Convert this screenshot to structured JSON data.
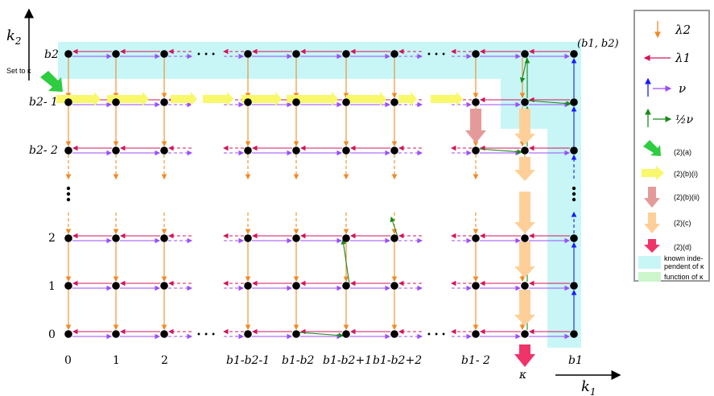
{
  "axes": {
    "y_label": "k",
    "y_sub": "2",
    "x_label": "k",
    "x_sub": "1",
    "set_to_kappa": "Set to κ"
  },
  "columns": [
    "0",
    "1",
    "2",
    "b1-b2-1",
    "b1-b2",
    "b1-b2+1",
    "b1-b2+2",
    "b1- 2",
    "κ",
    "b1"
  ],
  "rows": [
    "b2",
    "b2- 1",
    "b2- 2",
    "2",
    "1",
    "0"
  ],
  "corner_label": "(b1, b2)",
  "ellipsis": "• • •",
  "legend": {
    "lambda2": "λ2",
    "lambda1": "λ1",
    "nu": "ν",
    "half_nu": "½ν",
    "a": "(2)(a)",
    "bi": "(2)(b)(i)",
    "bii": "(2)(b)(ii)",
    "c": "(2)(c)",
    "d": "(2)(d)",
    "known_1": "known inde-",
    "known_2": "pendent of κ",
    "function": "function of κ"
  },
  "colors": {
    "lambda2": "#f08a24",
    "lambda1": "#d4145a",
    "nu_blue": "#1a1aff",
    "nu_purple": "#9a4dff",
    "half_nu": "#1a8a1a",
    "cyan": "#c8f6f6",
    "yellow": "#f8f86a",
    "pink": "#e59a9a",
    "peach": "#ffcf99",
    "hotpink": "#f0346a",
    "green": "#2ecc40",
    "green_light": "#ccf5cc"
  }
}
